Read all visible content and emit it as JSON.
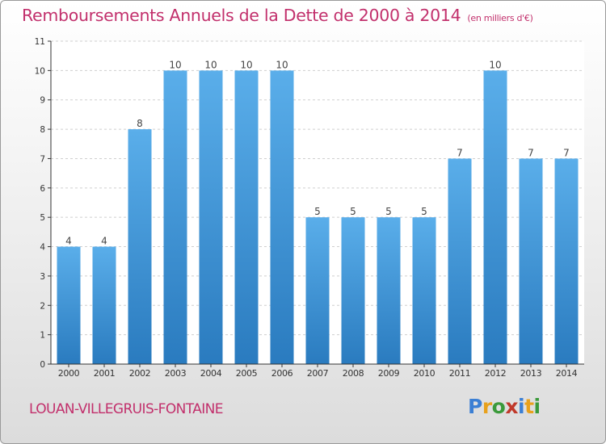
{
  "title": "Remboursements Annuels de la Dette de 2000 à 2014",
  "unit_note": "(en milliers d'€)",
  "location": "LOUAN-VILLEGRUIS-FONTAINE",
  "logo": {
    "letters": [
      "P",
      "r",
      "o",
      "x",
      "i",
      "t",
      "i"
    ],
    "colors": [
      "#3b7fd4",
      "#e8a11c",
      "#3b9a3b",
      "#c0392b",
      "#3b7fd4",
      "#e8a11c",
      "#3b9a3b"
    ]
  },
  "chart_data": {
    "type": "bar",
    "categories": [
      "2000",
      "2001",
      "2002",
      "2003",
      "2004",
      "2005",
      "2006",
      "2007",
      "2008",
      "2009",
      "2010",
      "2011",
      "2012",
      "2013",
      "2014"
    ],
    "values": [
      4,
      4,
      8,
      10,
      10,
      10,
      10,
      5,
      5,
      5,
      5,
      7,
      10,
      7,
      7
    ],
    "ylim": [
      0,
      11
    ],
    "yticks": [
      0,
      1,
      2,
      3,
      4,
      5,
      6,
      7,
      8,
      9,
      10,
      11
    ],
    "grid": true,
    "colors": {
      "bar_light": "#5aaeea",
      "bar_dark": "#2a7bbf",
      "grid": "#cfcfcf"
    }
  }
}
